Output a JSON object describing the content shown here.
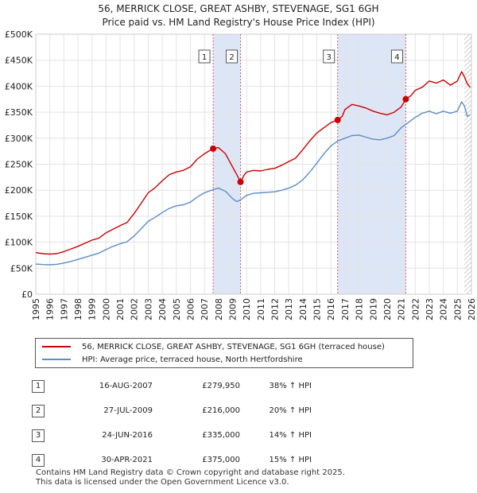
{
  "title_line1": "56, MERRICK CLOSE, GREAT ASHBY, STEVENAGE, SG1 6GH",
  "title_line2": "Price paid vs. HM Land Registry's House Price Index (HPI)",
  "legend": {
    "property": "56, MERRICK CLOSE, GREAT ASHBY, STEVENAGE, SG1 6GH (terraced house)",
    "hpi": "HPI: Average price, terraced house, North Hertfordshire"
  },
  "colors": {
    "property": "#cc0000",
    "hpi": "#5b8dc9",
    "shade": "#dde6f7",
    "vline": "#d06060",
    "hatch": "#999999"
  },
  "transactions": [
    {
      "n": "1",
      "date": "16-AUG-2007",
      "price": "£279,950",
      "pct": "38% ↑ HPI"
    },
    {
      "n": "2",
      "date": "27-JUL-2009",
      "price": "£216,000",
      "pct": "20% ↑ HPI"
    },
    {
      "n": "3",
      "date": "24-JUN-2016",
      "price": "£335,000",
      "pct": "14% ↑ HPI"
    },
    {
      "n": "4",
      "date": "30-APR-2021",
      "price": "£375,000",
      "pct": "15% ↑ HPI"
    }
  ],
  "footer": {
    "line1": "Contains HM Land Registry data © Crown copyright and database right 2025.",
    "line2": "This data is licensed under the Open Government Licence v3.0."
  },
  "chart_data": {
    "type": "line",
    "title": "Price paid vs. HM Land Registry's House Price Index (HPI)",
    "xlabel": "",
    "ylabel": "",
    "xlim": [
      1995,
      2026
    ],
    "ylim": [
      0,
      500000
    ],
    "x_ticks": [
      "1995",
      "1996",
      "1997",
      "1998",
      "1999",
      "2000",
      "2001",
      "2002",
      "2003",
      "2004",
      "2005",
      "2006",
      "2007",
      "2008",
      "2009",
      "2010",
      "2011",
      "2012",
      "2013",
      "2014",
      "2015",
      "2016",
      "2017",
      "2018",
      "2019",
      "2020",
      "2021",
      "2022",
      "2023",
      "2024",
      "2025",
      "2026"
    ],
    "y_ticks": [
      {
        "v": 0,
        "label": "£0"
      },
      {
        "v": 50000,
        "label": "£50K"
      },
      {
        "v": 100000,
        "label": "£100K"
      },
      {
        "v": 150000,
        "label": "£150K"
      },
      {
        "v": 200000,
        "label": "£200K"
      },
      {
        "v": 250000,
        "label": "£250K"
      },
      {
        "v": 300000,
        "label": "£300K"
      },
      {
        "v": 350000,
        "label": "£350K"
      },
      {
        "v": 400000,
        "label": "£400K"
      },
      {
        "v": 450000,
        "label": "£450K"
      },
      {
        "v": 500000,
        "label": "£500K"
      }
    ],
    "shaded_periods": [
      [
        2007.62,
        2009.57
      ],
      [
        2016.48,
        2021.33
      ]
    ],
    "hatched_after": 2025.5,
    "sales": [
      {
        "n": "1",
        "x": 2007.62,
        "y": 279950
      },
      {
        "n": "2",
        "x": 2009.57,
        "y": 216000
      },
      {
        "n": "3",
        "x": 2016.48,
        "y": 335000
      },
      {
        "n": "4",
        "x": 2021.33,
        "y": 375000
      }
    ],
    "series": [
      {
        "name": "56, MERRICK CLOSE, GREAT ASHBY, STEVENAGE, SG1 6GH (terraced house)",
        "x": [
          1995,
          1995.5,
          1996,
          1996.5,
          1997,
          1997.5,
          1998,
          1998.5,
          1999,
          1999.5,
          2000,
          2000.5,
          2001,
          2001.5,
          2002,
          2002.5,
          2003,
          2003.5,
          2004,
          2004.5,
          2005,
          2005.5,
          2006,
          2006.5,
          2007,
          2007.3,
          2007.62,
          2008,
          2008.5,
          2009,
          2009.3,
          2009.57,
          2009.8,
          2010,
          2010.5,
          2011,
          2011.5,
          2012,
          2012.5,
          2013,
          2013.5,
          2014,
          2014.5,
          2015,
          2015.5,
          2016,
          2016.48,
          2016.8,
          2017,
          2017.5,
          2018,
          2018.5,
          2019,
          2019.5,
          2020,
          2020.5,
          2021,
          2021.33,
          2021.7,
          2022,
          2022.5,
          2023,
          2023.5,
          2024,
          2024.5,
          2025,
          2025.3,
          2025.5,
          2025.7,
          2025.9
        ],
        "y": [
          80000,
          78000,
          77000,
          78000,
          82000,
          87000,
          92000,
          98000,
          104000,
          108000,
          118000,
          125000,
          132000,
          138000,
          155000,
          175000,
          195000,
          205000,
          218000,
          230000,
          235000,
          238000,
          245000,
          260000,
          270000,
          275000,
          279950,
          282000,
          270000,
          245000,
          230000,
          216000,
          228000,
          235000,
          238000,
          237000,
          240000,
          242000,
          248000,
          255000,
          262000,
          278000,
          295000,
          310000,
          320000,
          330000,
          335000,
          342000,
          355000,
          365000,
          362000,
          358000,
          352000,
          348000,
          345000,
          350000,
          360000,
          375000,
          382000,
          392000,
          398000,
          410000,
          406000,
          412000,
          402000,
          410000,
          428000,
          418000,
          405000,
          398000
        ]
      },
      {
        "name": "HPI: Average price, terraced house, North Hertfordshire",
        "x": [
          1995,
          1995.5,
          1996,
          1996.5,
          1997,
          1997.5,
          1998,
          1998.5,
          1999,
          1999.5,
          2000,
          2000.5,
          2001,
          2001.5,
          2002,
          2002.5,
          2003,
          2003.5,
          2004,
          2004.5,
          2005,
          2005.5,
          2006,
          2006.5,
          2007,
          2007.5,
          2008,
          2008.5,
          2009,
          2009.3,
          2009.6,
          2010,
          2010.5,
          2011,
          2011.5,
          2012,
          2012.5,
          2013,
          2013.5,
          2014,
          2014.5,
          2015,
          2015.5,
          2016,
          2016.5,
          2017,
          2017.5,
          2018,
          2018.5,
          2019,
          2019.5,
          2020,
          2020.5,
          2021,
          2021.5,
          2022,
          2022.5,
          2023,
          2023.5,
          2024,
          2024.5,
          2025,
          2025.3,
          2025.5,
          2025.7,
          2025.9
        ],
        "y": [
          58000,
          57000,
          56500,
          57500,
          60000,
          63000,
          67000,
          71000,
          75000,
          79000,
          86000,
          92000,
          97000,
          101000,
          112000,
          126000,
          140000,
          148000,
          157000,
          165000,
          170000,
          172000,
          177000,
          187000,
          195000,
          200000,
          204000,
          198000,
          184000,
          178000,
          182000,
          190000,
          194000,
          195000,
          196000,
          197000,
          200000,
          204000,
          210000,
          220000,
          235000,
          252000,
          270000,
          285000,
          295000,
          300000,
          305000,
          306000,
          302000,
          298000,
          297000,
          300000,
          305000,
          320000,
          330000,
          340000,
          348000,
          352000,
          347000,
          352000,
          348000,
          352000,
          370000,
          362000,
          342000,
          345000
        ]
      }
    ]
  }
}
